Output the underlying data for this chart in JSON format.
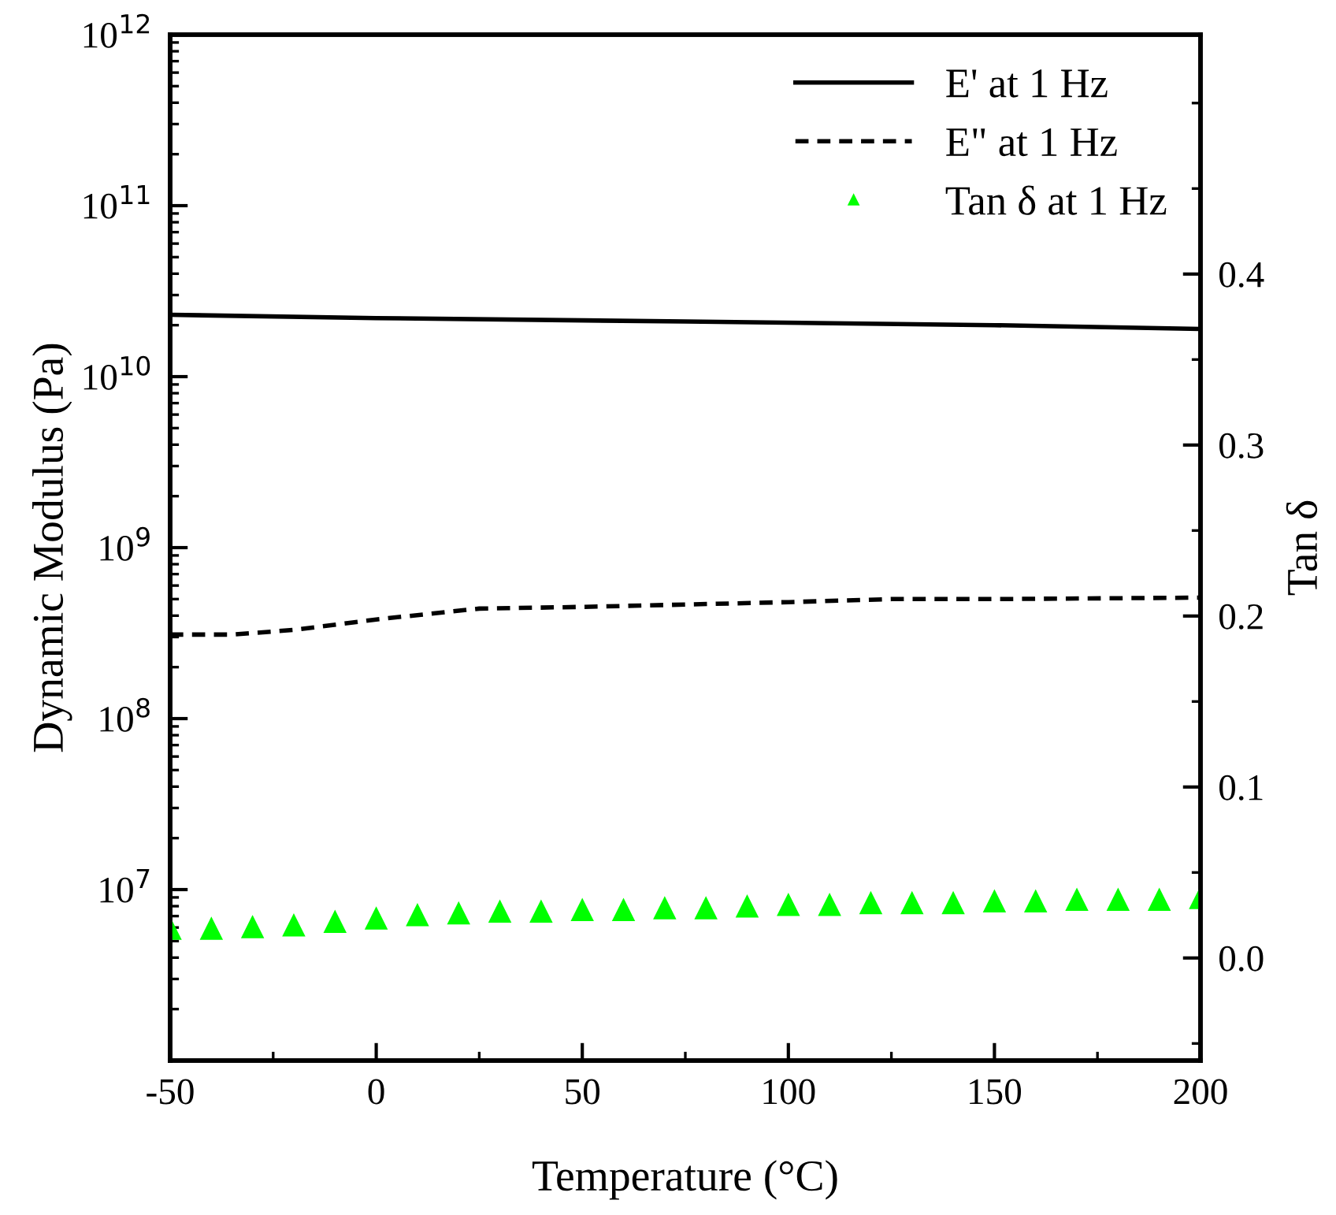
{
  "chart_data": {
    "type": "line",
    "xlabel": "Temperature (°C)",
    "ylabel": "Dynamic Modulus (Pa)",
    "y2label": "Tan δ",
    "xlim": [
      -50,
      200
    ],
    "xticks": [
      -50,
      0,
      50,
      100,
      150,
      200
    ],
    "ylim": [
      1000000,
      1000000000000
    ],
    "log": "y",
    "yticks": [
      {
        "value": 10000000,
        "label": "10$^{7}$"
      },
      {
        "value": 100000000,
        "label": "10$^{8}$"
      },
      {
        "value": 1000000000,
        "label": "10$^{9}$"
      },
      {
        "value": 10000000000,
        "label": "10$^{10}$"
      },
      {
        "value": 100000000000,
        "label": "10$^{11}$"
      },
      {
        "value": 1000000000000,
        "label": "10$^{12}$"
      }
    ],
    "y2lim": [
      -0.06,
      0.54
    ],
    "y2ticks": [
      {
        "value": 0.0,
        "label": "0.0"
      },
      {
        "value": 0.1,
        "label": "0.1"
      },
      {
        "value": 0.2,
        "label": "0.2"
      },
      {
        "value": 0.3,
        "label": "0.3"
      },
      {
        "value": 0.4,
        "label": "0.4"
      }
    ],
    "grid": false,
    "legend": "top right",
    "series": [
      {
        "name": "E' at 1 Hz",
        "line_style": "solid",
        "color": "#000000",
        "x": [
          -50,
          0,
          75,
          150,
          200
        ],
        "values": [
          23000000000,
          22000000000,
          21000000000,
          20000000000,
          19000000000
        ]
      },
      {
        "name": "E\" at 1 Hz",
        "line_style": "dashed",
        "color": "#000000",
        "x": [
          -50,
          -35,
          -20,
          0,
          25,
          50,
          100,
          125,
          150,
          200
        ],
        "values": [
          310000000,
          310000000,
          330000000,
          380000000,
          440000000,
          450000000,
          480000000,
          500000000,
          500000000,
          510000000
        ]
      },
      {
        "name": "Tan δ at 1 Hz",
        "type": "scatter",
        "marker": "triangle",
        "axis": "y2",
        "color": "#00ff00",
        "x": [
          -50,
          -40,
          -30,
          -20,
          -10,
          0,
          10,
          20,
          30,
          40,
          50,
          60,
          70,
          80,
          90,
          100,
          110,
          120,
          130,
          140,
          150,
          160,
          170,
          180,
          190,
          200
        ],
        "values": [
          0.017,
          0.017,
          0.018,
          0.019,
          0.021,
          0.023,
          0.025,
          0.026,
          0.027,
          0.027,
          0.028,
          0.028,
          0.029,
          0.029,
          0.03,
          0.031,
          0.031,
          0.032,
          0.032,
          0.032,
          0.033,
          0.033,
          0.034,
          0.034,
          0.034,
          0.035
        ]
      }
    ]
  }
}
